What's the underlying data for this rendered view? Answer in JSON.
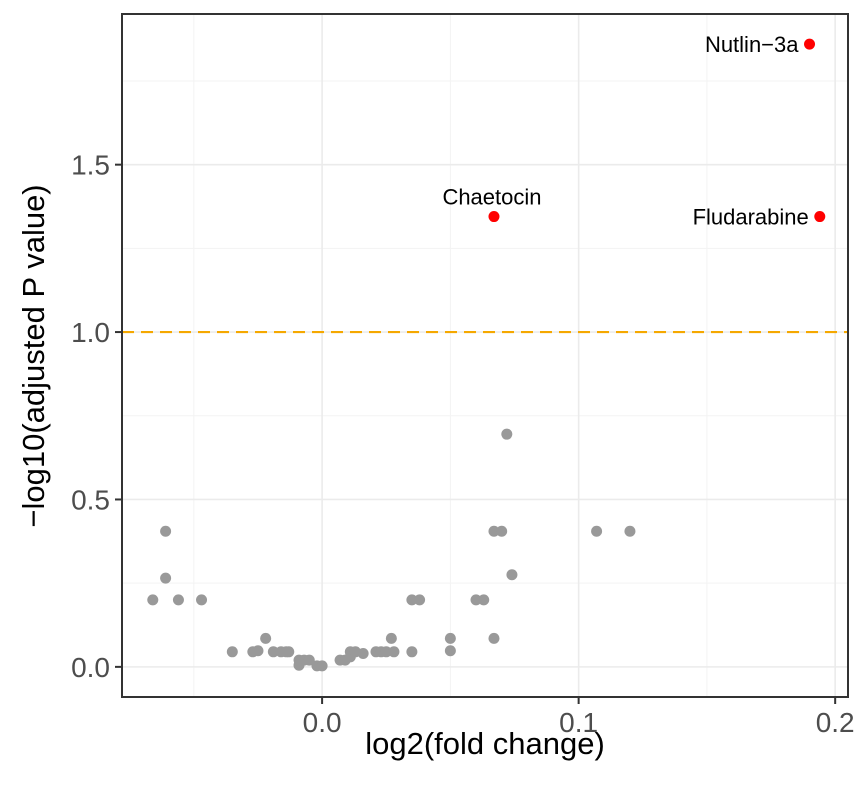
{
  "chart_data": {
    "type": "scatter",
    "title": "",
    "xlabel": "log2(fold change)",
    "ylabel": "−log10(adjusted P value)",
    "xlim": [
      -0.078,
      0.205
    ],
    "ylim": [
      -0.09,
      1.95
    ],
    "x_ticks": [
      0.0,
      0.1,
      0.2
    ],
    "x_tick_labels": [
      "0.0",
      "0.1",
      "0.2"
    ],
    "y_ticks": [
      0.0,
      0.5,
      1.0,
      1.5
    ],
    "y_tick_labels": [
      "0.0",
      "0.5",
      "1.0",
      "1.5"
    ],
    "grid": true,
    "threshold": {
      "y": 1.0,
      "color": "#F5A800",
      "style": "dashed"
    },
    "colors": {
      "significant": "#FF0000",
      "non_significant": "#999999"
    },
    "significant_points": [
      {
        "label": "Nutlin−3a",
        "x": 0.19,
        "y": 1.86
      },
      {
        "label": "Chaetocin",
        "x": 0.067,
        "y": 1.345
      },
      {
        "label": "Fludarabine",
        "x": 0.194,
        "y": 1.345
      }
    ],
    "points": [
      [
        -0.066,
        0.2
      ],
      [
        -0.061,
        0.405
      ],
      [
        -0.061,
        0.265
      ],
      [
        -0.056,
        0.2
      ],
      [
        -0.047,
        0.2
      ],
      [
        -0.035,
        0.045
      ],
      [
        -0.027,
        0.045
      ],
      [
        -0.025,
        0.048
      ],
      [
        -0.022,
        0.085
      ],
      [
        -0.019,
        0.045
      ],
      [
        -0.016,
        0.045
      ],
      [
        -0.014,
        0.045
      ],
      [
        -0.013,
        0.045
      ],
      [
        -0.009,
        0.02
      ],
      [
        -0.009,
        0.005
      ],
      [
        -0.007,
        0.02
      ],
      [
        -0.005,
        0.02
      ],
      [
        -0.002,
        0.003
      ],
      [
        0.0,
        0.003
      ],
      [
        0.007,
        0.02
      ],
      [
        0.009,
        0.02
      ],
      [
        0.011,
        0.03
      ],
      [
        0.011,
        0.045
      ],
      [
        0.013,
        0.045
      ],
      [
        0.016,
        0.04
      ],
      [
        0.021,
        0.045
      ],
      [
        0.023,
        0.045
      ],
      [
        0.025,
        0.045
      ],
      [
        0.027,
        0.085
      ],
      [
        0.028,
        0.045
      ],
      [
        0.035,
        0.045
      ],
      [
        0.035,
        0.2
      ],
      [
        0.038,
        0.2
      ],
      [
        0.05,
        0.085
      ],
      [
        0.05,
        0.048
      ],
      [
        0.06,
        0.2
      ],
      [
        0.063,
        0.2
      ],
      [
        0.067,
        0.405
      ],
      [
        0.067,
        0.085
      ],
      [
        0.07,
        0.405
      ],
      [
        0.072,
        0.695
      ],
      [
        0.074,
        0.275
      ],
      [
        0.107,
        0.405
      ],
      [
        0.12,
        0.405
      ]
    ]
  }
}
